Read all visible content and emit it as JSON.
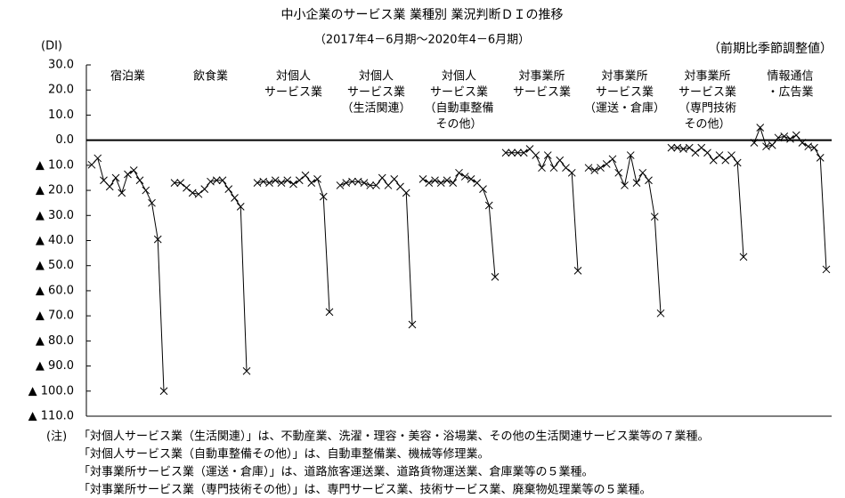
{
  "chart_data": {
    "type": "line",
    "title": "中小企業のサービス業 業種別 業況判断ＤＩの推移",
    "subtitle": "（2017年4－6月期～2020年4－6月期）",
    "y_label": "(DI)",
    "annotation": "（前期比季節調整値）",
    "color": "#000000",
    "ylim": [
      30,
      -110
    ],
    "yticks": [
      {
        "value": 30,
        "label": "30.0"
      },
      {
        "value": 20,
        "label": "20.0"
      },
      {
        "value": 10,
        "label": "10.0"
      },
      {
        "value": 0,
        "label": "0.0"
      },
      {
        "value": -10,
        "label": "▲ 10.0"
      },
      {
        "value": -20,
        "label": "▲ 20.0"
      },
      {
        "value": -30,
        "label": "▲ 30.0"
      },
      {
        "value": -40,
        "label": "▲ 40.0"
      },
      {
        "value": -50,
        "label": "▲ 50.0"
      },
      {
        "value": -60,
        "label": "▲ 60.0"
      },
      {
        "value": -70,
        "label": "▲ 70.0"
      },
      {
        "value": -80,
        "label": "▲ 80.0"
      },
      {
        "value": -90,
        "label": "▲ 90.0"
      },
      {
        "value": -100,
        "label": "▲ 100.0"
      },
      {
        "value": -110,
        "label": "▲ 110.0"
      }
    ],
    "series": [
      {
        "name": [
          "宿泊業"
        ],
        "values": [
          -9.8,
          -7.2,
          -16,
          -18.5,
          -15,
          -21,
          -13.6,
          -12,
          -16,
          -20,
          -25,
          -39.5,
          -100
        ]
      },
      {
        "name": [
          "飲食業"
        ],
        "values": [
          -17,
          -17,
          -19,
          -21,
          -21.5,
          -19.5,
          -16.5,
          -16,
          -16,
          -19.5,
          -23,
          -26.5,
          -92
        ]
      },
      {
        "name": [
          "対個人",
          "サービス業"
        ],
        "values": [
          -17,
          -16.5,
          -17,
          -16,
          -17,
          -16,
          -17.5,
          -16,
          -14,
          -17,
          -15.5,
          -22.5,
          -68.5
        ]
      },
      {
        "name": [
          "対個人",
          "サービス業",
          "（生活関連）"
        ],
        "values": [
          -18,
          -17,
          -16.5,
          -16.5,
          -17,
          -18,
          -18,
          -15,
          -18,
          -15.5,
          -18.5,
          -21,
          -73.5
        ]
      },
      {
        "name": [
          "対個人",
          "サービス業",
          "（自動車整備",
          "その他）"
        ],
        "values": [
          -15.5,
          -17,
          -16,
          -17,
          -16,
          -17,
          -13,
          -14.5,
          -15.5,
          -17,
          -19.5,
          -26,
          -54.5
        ]
      },
      {
        "name": [
          "対事業所",
          "サービス業"
        ],
        "values": [
          -5,
          -5,
          -5,
          -5,
          -3.5,
          -6,
          -11,
          -6,
          -11,
          -8,
          -11,
          -13,
          -52
        ]
      },
      {
        "name": [
          "対事業所",
          "サービス業",
          "（運送・倉庫）"
        ],
        "values": [
          -11,
          -12,
          -11,
          -9.5,
          -7.5,
          -13,
          -18,
          -6,
          -17,
          -13,
          -16,
          -30.5,
          -69
        ]
      },
      {
        "name": [
          "対事業所",
          "サービス業",
          "（専門技術",
          "その他）"
        ],
        "values": [
          -3,
          -3,
          -3.5,
          -3,
          -5,
          -3,
          -5,
          -8,
          -6,
          -8,
          -6,
          -9,
          -46.5
        ]
      },
      {
        "name": [
          "情報通信",
          "・広告業"
        ],
        "values": [
          -1,
          5,
          -2.5,
          -2,
          1,
          1.5,
          0.5,
          2,
          -1,
          -2.5,
          -3,
          -7,
          -51.5
        ]
      }
    ],
    "notes_label": "(注)",
    "notes": [
      "「対個人サービス業（生活関連）」は、不動産業、洗濯・理容・美容・浴場業、その他の生活関連サービス業等の７業種。",
      "「対個人サービス業（自動車整備その他）」は、自動車整備業、機械等修理業。",
      "「対事業所サービス業（運送・倉庫）」は、道路旅客運送業、道路貨物運送業、倉庫業等の５業種。",
      "「対事業所サービス業（専門技術その他）」は、専門サービス業、技術サービス業、廃棄物処理業等の５業種。"
    ]
  }
}
